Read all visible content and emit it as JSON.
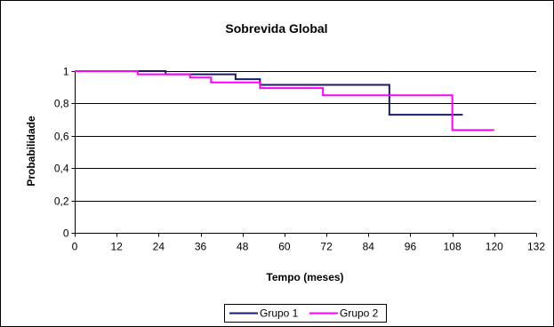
{
  "chart_data": {
    "type": "line",
    "step": true,
    "title": "Sobrevida Global",
    "xlabel": "Tempo (meses)",
    "ylabel": "Probabilidade",
    "xlim": [
      0,
      132
    ],
    "ylim": [
      0,
      1
    ],
    "x_ticks": [
      0,
      12,
      24,
      36,
      48,
      60,
      72,
      84,
      96,
      108,
      120,
      132
    ],
    "x_tick_labels": [
      "0",
      "12",
      "24",
      "36",
      "48",
      "60",
      "72",
      "84",
      "96",
      "108",
      "120",
      "132"
    ],
    "y_ticks": [
      0,
      0.2,
      0.4,
      0.6,
      0.8,
      1
    ],
    "y_tick_labels": [
      "0",
      "0,2",
      "0,4",
      "0,6",
      "0,8",
      "1"
    ],
    "grid": "horizontal",
    "legend_position": "bottom",
    "series": [
      {
        "name": "Grupo 1",
        "color": "#1a1a6e",
        "x": [
          0,
          26,
          46,
          53,
          90,
          111
        ],
        "y": [
          1,
          0.98,
          0.95,
          0.915,
          0.73,
          0.73
        ]
      },
      {
        "name": "Grupo 2",
        "color": "#ff00ff",
        "x": [
          0,
          18,
          33,
          39,
          53,
          71,
          108,
          120
        ],
        "y": [
          1,
          0.98,
          0.96,
          0.93,
          0.895,
          0.85,
          0.635,
          0.635
        ]
      }
    ]
  }
}
